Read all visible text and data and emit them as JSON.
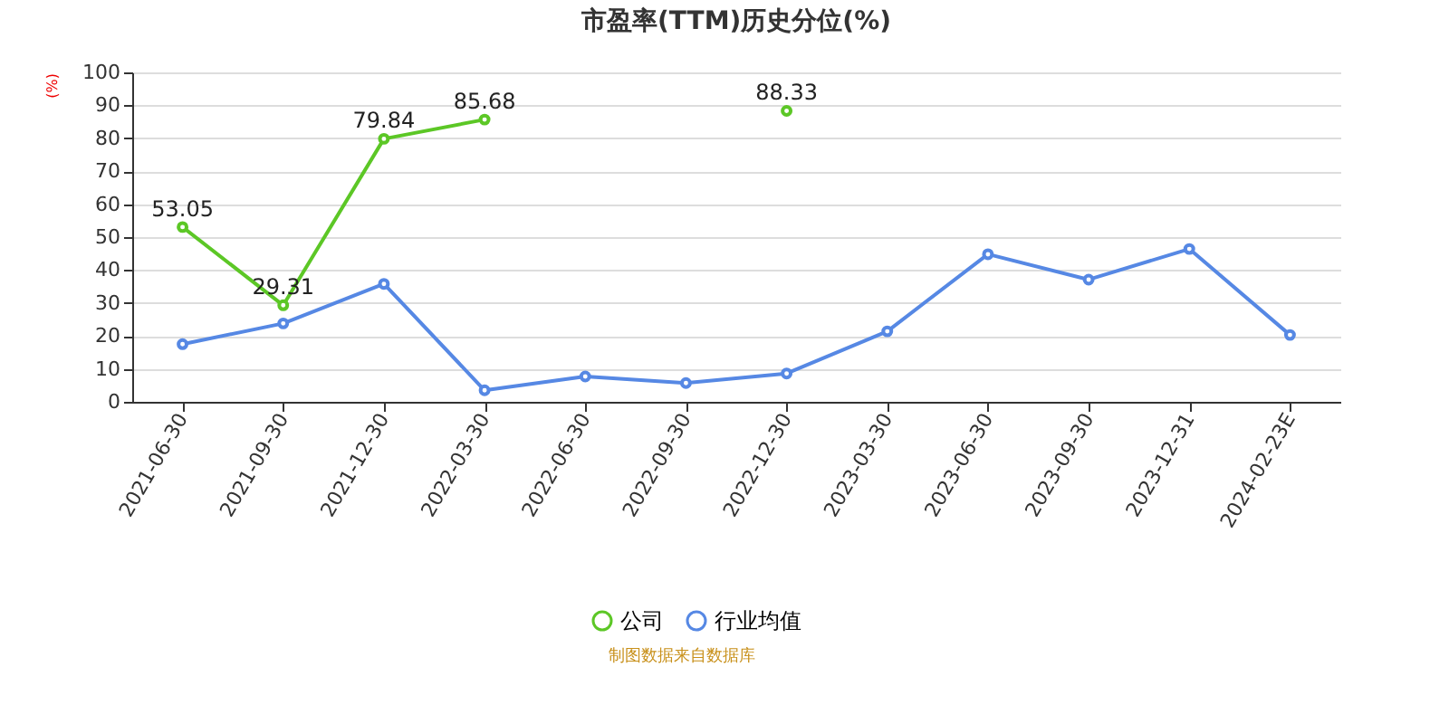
{
  "chart_data": {
    "type": "line",
    "title": "市盈率(TTM)历史分位(%)",
    "ylabel": "(%)",
    "categories": [
      "2021-06-30",
      "2021-09-30",
      "2021-12-30",
      "2022-03-30",
      "2022-06-30",
      "2022-09-30",
      "2022-12-30",
      "2023-03-30",
      "2023-06-30",
      "2023-09-30",
      "2023-12-31",
      "2024-02-23E"
    ],
    "series": [
      {
        "name": "公司",
        "color": "#5cc726",
        "values": [
          53.05,
          29.31,
          79.84,
          85.68,
          null,
          null,
          88.33,
          null,
          null,
          null,
          null,
          null
        ],
        "value_labels": [
          "53.05",
          "29.31",
          "79.84",
          "85.68",
          null,
          null,
          "88.33",
          null,
          null,
          null,
          null,
          null
        ]
      },
      {
        "name": "行业均值",
        "color": "#5688e4",
        "values": [
          17.5,
          23.8,
          35.8,
          3.5,
          7.7,
          5.7,
          8.6,
          21.4,
          44.8,
          37.1,
          46.4,
          20.3
        ]
      }
    ],
    "ylim": [
      0,
      100
    ],
    "yticks": [
      0,
      10,
      20,
      30,
      40,
      50,
      60,
      70,
      80,
      90,
      100
    ],
    "grid": "y",
    "legend": "bottom",
    "marker": "circle",
    "line_style": "solid",
    "annotations": [
      "制图数据来自数据库"
    ]
  }
}
